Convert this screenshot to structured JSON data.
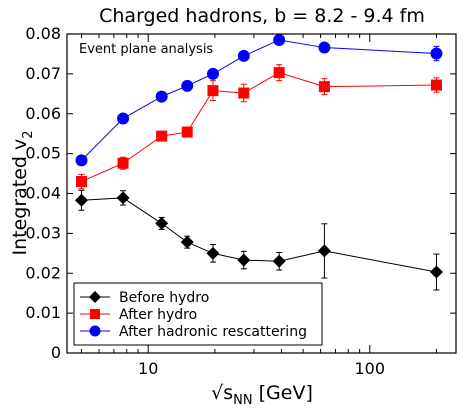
{
  "chart_data": {
    "type": "line",
    "title": "Charged hadrons, b = 8.2 - 9.4 fm",
    "annotation": "Event plane analysis",
    "xlabel_prefix": "√s",
    "xlabel_sub": "NN",
    "xlabel_suffix": " [GeV]",
    "ylabel_main": "Integrated v",
    "ylabel_sub": "2",
    "x_scale": "log",
    "xlim": [
      4.3,
      245
    ],
    "ylim": [
      0,
      0.08
    ],
    "y_ticks": [
      0,
      0.01,
      0.02,
      0.03,
      0.04,
      0.05,
      0.06,
      0.07,
      0.08
    ],
    "y_tick_labels": [
      "0",
      "0.01",
      "0.02",
      "0.03",
      "0.04",
      "0.05",
      "0.06",
      "0.07",
      "0.08"
    ],
    "x_major_ticks": [
      10,
      100
    ],
    "x_tick_labels": [
      "10",
      "100"
    ],
    "x_minor_ticks": [
      5,
      6,
      7,
      8,
      9,
      20,
      30,
      40,
      50,
      60,
      70,
      80,
      90,
      200
    ],
    "legend_position": "bottom-left",
    "series": [
      {
        "name": "Before hydro",
        "marker": "diamond",
        "color": "#000000",
        "x": [
          5,
          7.7,
          11.5,
          15,
          19.6,
          27,
          39,
          62.4,
          200
        ],
        "y": [
          0.0383,
          0.0389,
          0.0325,
          0.0278,
          0.025,
          0.0233,
          0.023,
          0.0256,
          0.0203
        ],
        "err": [
          0.0025,
          0.0018,
          0.0015,
          0.0015,
          0.0022,
          0.0022,
          0.0022,
          0.0068,
          0.0045
        ]
      },
      {
        "name": "After hydro",
        "marker": "square",
        "color": "#ff0000",
        "x": [
          5,
          7.7,
          11.5,
          15,
          19.6,
          27,
          39,
          62.4,
          200
        ],
        "y": [
          0.043,
          0.0476,
          0.0544,
          0.0554,
          0.0658,
          0.0652,
          0.0703,
          0.0668,
          0.0672
        ],
        "err": [
          0.0018,
          0.0015,
          0.0012,
          0.0012,
          0.0025,
          0.0022,
          0.002,
          0.002,
          0.0018
        ]
      },
      {
        "name": "After hadronic rescattering",
        "marker": "circle",
        "color": "#0000ff",
        "x": [
          5,
          7.7,
          11.5,
          15,
          19.6,
          27,
          39,
          62.4,
          200
        ],
        "y": [
          0.0483,
          0.0588,
          0.0643,
          0.067,
          0.07,
          0.0745,
          0.0785,
          0.0766,
          0.0751
        ],
        "err": [
          0.0008,
          0.0008,
          0.0008,
          0.0008,
          0.0008,
          0.0008,
          0.0008,
          0.001,
          0.0018
        ]
      }
    ]
  }
}
